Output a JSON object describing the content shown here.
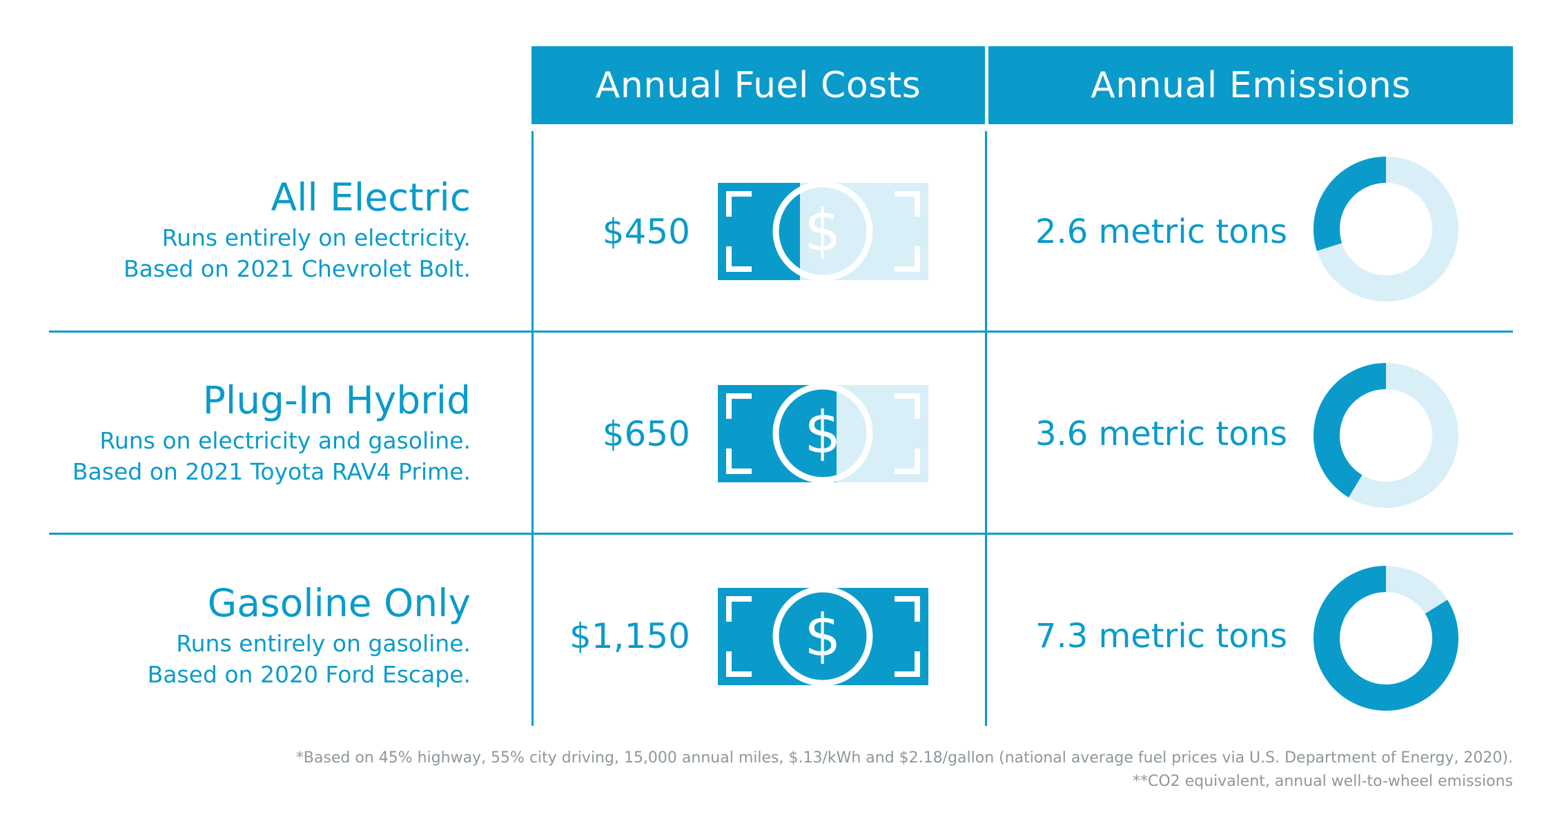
{
  "headers": {
    "fuel": "Annual Fuel Costs",
    "emissions": "Annual Emissions"
  },
  "rows": [
    {
      "title": "All Electric",
      "sub1": "Runs entirely on electricity.",
      "sub2": "Based on 2021 Chevrolet Bolt.",
      "cost": "$450",
      "cost_value": 450,
      "emissions": "2.6 metric tons",
      "emissions_value": 2.6
    },
    {
      "title": "Plug-In Hybrid",
      "sub1": "Runs on electricity and gasoline.",
      "sub2": "Based on 2021 Toyota RAV4 Prime.",
      "cost": "$650",
      "cost_value": 650,
      "emissions": "3.6 metric tons",
      "emissions_value": 3.6
    },
    {
      "title": "Gasoline Only",
      "sub1": "Runs entirely on gasoline.",
      "sub2": "Based on 2020 Ford Escape.",
      "cost": "$1,150",
      "cost_value": 1150,
      "emissions": "7.3 metric tons",
      "emissions_value": 7.3
    }
  ],
  "footnotes": {
    "line1": "*Based on 45% highway, 55% city driving, 15,000 annual miles, $.13/kWh and $2.18/gallon (national average fuel prices via U.S. Department of Energy, 2020).",
    "line2": "**CO2 equivalent, annual well-to-wheel emissions"
  },
  "colors": {
    "accent": "#0a9bcb",
    "light": "#d9eff7",
    "footnote": "#8e979c"
  },
  "chart_data": {
    "type": "table",
    "columns": [
      "Annual Fuel Costs",
      "Annual Emissions"
    ],
    "categories": [
      "All Electric",
      "Plug-In Hybrid",
      "Gasoline Only"
    ],
    "series": [
      {
        "name": "Annual Fuel Costs",
        "values": [
          450,
          650,
          1150
        ]
      },
      {
        "name": "Annual Emissions",
        "values": [
          2.6,
          3.6,
          7.3
        ]
      }
    ],
    "fuel_scale_max": 1150,
    "emissions_scale_max": 8.7
  }
}
